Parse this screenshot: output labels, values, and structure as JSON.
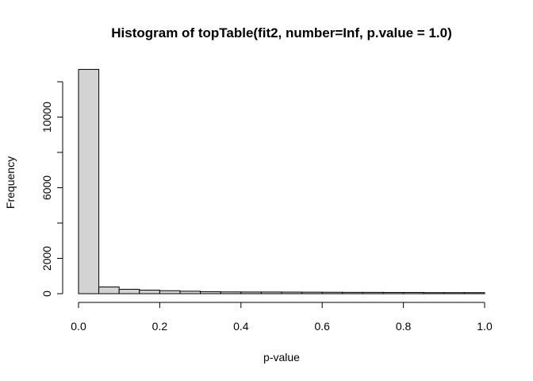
{
  "chart_data": {
    "type": "bar",
    "title": "Histogram of topTable(fit2, number=Inf, p.value = 1.0)",
    "xlabel": "p-value",
    "ylabel": "Frequency",
    "bin_edges": [
      0.0,
      0.05,
      0.1,
      0.15,
      0.2,
      0.25,
      0.3,
      0.35,
      0.4,
      0.45,
      0.5,
      0.55,
      0.6,
      0.65,
      0.7,
      0.75,
      0.8,
      0.85,
      0.9,
      0.95,
      1.0
    ],
    "values": [
      12700,
      380,
      250,
      200,
      170,
      140,
      110,
      100,
      95,
      95,
      90,
      85,
      80,
      75,
      75,
      70,
      70,
      60,
      60,
      60
    ],
    "xlim": [
      0.0,
      1.0
    ],
    "ylim": [
      0,
      12000
    ],
    "x_ticks": [
      "0.0",
      "0.2",
      "0.4",
      "0.6",
      "0.8",
      "1.0"
    ],
    "y_ticks": [
      "0",
      "2000",
      "6000",
      "10000"
    ],
    "colors": {
      "bar_fill": "#d3d3d3",
      "bar_stroke": "#000000"
    },
    "grid": false
  }
}
